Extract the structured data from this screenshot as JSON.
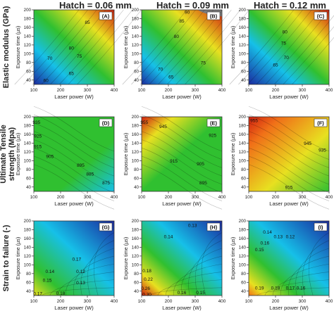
{
  "column_titles": [
    "Hatch = 0.06 mm",
    "Hatch = 0.09 mm",
    "Hatch = 0.12 mm"
  ],
  "row_titles": [
    "Elastic modulus (GPa)",
    "Ultimate Tensile strength (Mpa)",
    "Strain to failure (-)"
  ],
  "row_titles_lines": [
    [
      "Elastic modulus (GPa)"
    ],
    [
      "Ultimate Tensile",
      "strength (Mpa)"
    ],
    [
      "Strain to failure (-)"
    ]
  ],
  "colors": {
    "low": "#1a2a9e",
    "mid_low": "#16c0e8",
    "mid": "#30c030",
    "mid_high": "#e8e020",
    "high": "#d02010",
    "masked": "#7a7a7a"
  },
  "chart_data": [
    {
      "type": "contour",
      "panel": "(A)",
      "row": 0,
      "col": 0,
      "xlabel": "Laser power (W)",
      "ylabel": "Exposure time (µs)",
      "xlim": [
        100,
        400
      ],
      "ylim": [
        30,
        200
      ],
      "xticks": [
        100,
        200,
        300,
        400
      ],
      "yticks": [
        40,
        60,
        80,
        100,
        120,
        140,
        160,
        180,
        200
      ],
      "contour_labels": [
        {
          "text": "85",
          "x": 300,
          "y": 172
        },
        {
          "text": "80",
          "x": 240,
          "y": 113
        },
        {
          "text": "75",
          "x": 270,
          "y": 95
        },
        {
          "text": "70",
          "x": 160,
          "y": 90
        },
        {
          "text": "65",
          "x": 240,
          "y": 56
        },
        {
          "text": "60",
          "x": 145,
          "y": 40
        }
      ]
    },
    {
      "type": "contour",
      "panel": "(B)",
      "row": 0,
      "col": 1,
      "xlabel": "Laser power (W)",
      "ylabel": "Exposure time (µs)",
      "xlim": [
        100,
        400
      ],
      "ylim": [
        30,
        200
      ],
      "xticks": [
        100,
        200,
        300,
        400
      ],
      "yticks": [
        40,
        60,
        80,
        100,
        120,
        140,
        160,
        180,
        200
      ],
      "contour_labels": [
        {
          "text": "90",
          "x": 270,
          "y": 195
        },
        {
          "text": "85",
          "x": 250,
          "y": 175
        },
        {
          "text": "80",
          "x": 230,
          "y": 140
        },
        {
          "text": "75",
          "x": 330,
          "y": 80
        },
        {
          "text": "70",
          "x": 170,
          "y": 65
        },
        {
          "text": "65",
          "x": 210,
          "y": 48
        }
      ]
    },
    {
      "type": "contour",
      "panel": "(C)",
      "row": 0,
      "col": 2,
      "xlabel": "Laser power (W)",
      "ylabel": "Exposure time (µs)",
      "xlim": [
        100,
        400
      ],
      "ylim": [
        30,
        200
      ],
      "xticks": [
        100,
        200,
        300,
        400
      ],
      "yticks": [
        40,
        60,
        80,
        100,
        120,
        140,
        160,
        180,
        200
      ],
      "contour_labels": [
        {
          "text": "80",
          "x": 235,
          "y": 150
        },
        {
          "text": "75",
          "x": 230,
          "y": 125
        },
        {
          "text": "70",
          "x": 240,
          "y": 92
        },
        {
          "text": "65",
          "x": 200,
          "y": 75
        }
      ]
    },
    {
      "type": "contour",
      "panel": "(D)",
      "row": 1,
      "col": 0,
      "xlabel": "Laser power (W)",
      "ylabel": "Exposure time (µs)",
      "xlim": [
        100,
        400
      ],
      "ylim": [
        30,
        200
      ],
      "xticks": [
        100,
        200,
        300,
        400
      ],
      "yticks": [
        40,
        60,
        80,
        100,
        120,
        140,
        160,
        180,
        200
      ],
      "contour_labels": [
        {
          "text": "935",
          "x": 110,
          "y": 188
        },
        {
          "text": "925",
          "x": 115,
          "y": 157
        },
        {
          "text": "915",
          "x": 115,
          "y": 133
        },
        {
          "text": "905",
          "x": 160,
          "y": 110
        },
        {
          "text": "895",
          "x": 275,
          "y": 90
        },
        {
          "text": "885",
          "x": 310,
          "y": 70
        },
        {
          "text": "875",
          "x": 370,
          "y": 50
        }
      ]
    },
    {
      "type": "contour",
      "panel": "(E)",
      "row": 1,
      "col": 1,
      "xlabel": "Laser power (W)",
      "ylabel": "Exposure time (µs)",
      "xlim": [
        100,
        400
      ],
      "ylim": [
        30,
        200
      ],
      "xticks": [
        100,
        200,
        300,
        400
      ],
      "yticks": [
        40,
        60,
        80,
        100,
        120,
        140,
        160,
        180,
        200
      ],
      "contour_labels": [
        {
          "text": "955",
          "x": 110,
          "y": 188
        },
        {
          "text": "945",
          "x": 180,
          "y": 178
        },
        {
          "text": "925",
          "x": 365,
          "y": 158
        },
        {
          "text": "915",
          "x": 220,
          "y": 100
        },
        {
          "text": "905",
          "x": 320,
          "y": 93
        },
        {
          "text": "895",
          "x": 330,
          "y": 50
        }
      ]
    },
    {
      "type": "contour",
      "panel": "(F)",
      "row": 1,
      "col": 2,
      "xlabel": "Laser power (W)",
      "ylabel": "Exposure time (µs)",
      "xlim": [
        100,
        400
      ],
      "ylim": [
        30,
        200
      ],
      "xticks": [
        100,
        200,
        300,
        400
      ],
      "yticks": [
        40,
        60,
        80,
        100,
        120,
        140,
        160,
        180,
        200
      ],
      "contour_labels": [
        {
          "text": "955",
          "x": 120,
          "y": 192
        },
        {
          "text": "945",
          "x": 320,
          "y": 140
        },
        {
          "text": "935",
          "x": 375,
          "y": 125
        },
        {
          "text": "915",
          "x": 250,
          "y": 40
        }
      ]
    },
    {
      "type": "contour",
      "panel": "(G)",
      "row": 2,
      "col": 0,
      "xlabel": "Laser power (W)",
      "ylabel": "Exposure time (µs)",
      "xlim": [
        100,
        400
      ],
      "ylim": [
        30,
        200
      ],
      "xticks": [
        100,
        200,
        300,
        400
      ],
      "yticks": [
        40,
        60,
        80,
        100,
        120,
        140,
        160,
        180,
        200
      ],
      "contour_labels": [
        {
          "text": "0.17",
          "x": 260,
          "y": 113
        },
        {
          "text": "0.14",
          "x": 160,
          "y": 85
        },
        {
          "text": "0.12",
          "x": 275,
          "y": 85
        },
        {
          "text": "0.15",
          "x": 150,
          "y": 65
        },
        {
          "text": "0.13",
          "x": 275,
          "y": 60
        },
        {
          "text": "0.17",
          "x": 115,
          "y": 35
        },
        {
          "text": "0.18",
          "x": 200,
          "y": 36
        }
      ]
    },
    {
      "type": "contour",
      "panel": "(H)",
      "row": 2,
      "col": 1,
      "xlabel": "Laser power (W)",
      "ylabel": "Exposure time (µs)",
      "xlim": [
        100,
        400
      ],
      "ylim": [
        30,
        200
      ],
      "xticks": [
        100,
        200,
        300,
        400
      ],
      "yticks": [
        40,
        60,
        80,
        100,
        120,
        140,
        160,
        180,
        200
      ],
      "contour_labels": [
        {
          "text": "0.13",
          "x": 290,
          "y": 190
        },
        {
          "text": "0.14",
          "x": 200,
          "y": 165
        },
        {
          "text": "0.18",
          "x": 120,
          "y": 87
        },
        {
          "text": "0.22",
          "x": 125,
          "y": 68
        },
        {
          "text": "0.26",
          "x": 115,
          "y": 47
        },
        {
          "text": "0.30",
          "x": 120,
          "y": 33
        },
        {
          "text": "0.16",
          "x": 250,
          "y": 37
        },
        {
          "text": "0.15",
          "x": 320,
          "y": 37
        }
      ]
    },
    {
      "type": "contour",
      "panel": "(I)",
      "row": 2,
      "col": 2,
      "xlabel": "Laser power (W)",
      "ylabel": "Exposure time (µs)",
      "xlim": [
        100,
        400
      ],
      "ylim": [
        30,
        200
      ],
      "xticks": [
        100,
        200,
        300,
        400
      ],
      "yticks": [
        40,
        60,
        80,
        100,
        120,
        140,
        160,
        180,
        200
      ],
      "contour_labels": [
        {
          "text": "0.14",
          "x": 170,
          "y": 175
        },
        {
          "text": "0.13",
          "x": 210,
          "y": 165
        },
        {
          "text": "0.12",
          "x": 255,
          "y": 165
        },
        {
          "text": "0.16",
          "x": 160,
          "y": 150
        },
        {
          "text": "0.15",
          "x": 140,
          "y": 135
        },
        {
          "text": "0.19",
          "x": 140,
          "y": 48
        },
        {
          "text": "0.18",
          "x": 200,
          "y": 48
        },
        {
          "text": "0.17",
          "x": 255,
          "y": 48
        },
        {
          "text": "0.16",
          "x": 295,
          "y": 48
        }
      ]
    }
  ]
}
